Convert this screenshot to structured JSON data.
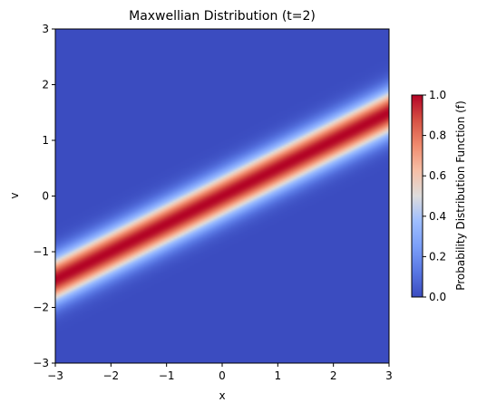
{
  "chart_data": {
    "type": "heatmap",
    "title": "Maxwellian Distribution (t=2)",
    "xlabel": "x",
    "ylabel": "v",
    "xlim": [
      -3,
      3
    ],
    "ylim": [
      -3,
      3
    ],
    "xticks": [
      "−3",
      "−2",
      "−1",
      "0",
      "1",
      "2",
      "3"
    ],
    "yticks": [
      "−3",
      "−2",
      "−1",
      "0",
      "1",
      "2",
      "3"
    ],
    "ridge": {
      "description_formula": "f = exp(-((v - x/2)^2)/(2*sigma^2))",
      "slope": 0.5,
      "sigma": 0.28,
      "peak": 1.0
    },
    "colormap": "coolwarm",
    "colorbar": {
      "label": "Probability Distribution Function (f)",
      "range": [
        0.0,
        1.0
      ],
      "ticks": [
        "0.0",
        "0.2",
        "0.4",
        "0.6",
        "0.8",
        "1.0"
      ]
    },
    "colors": {
      "low": "#3b4cc0",
      "mid": "#dddddd",
      "high": "#b40426"
    }
  }
}
